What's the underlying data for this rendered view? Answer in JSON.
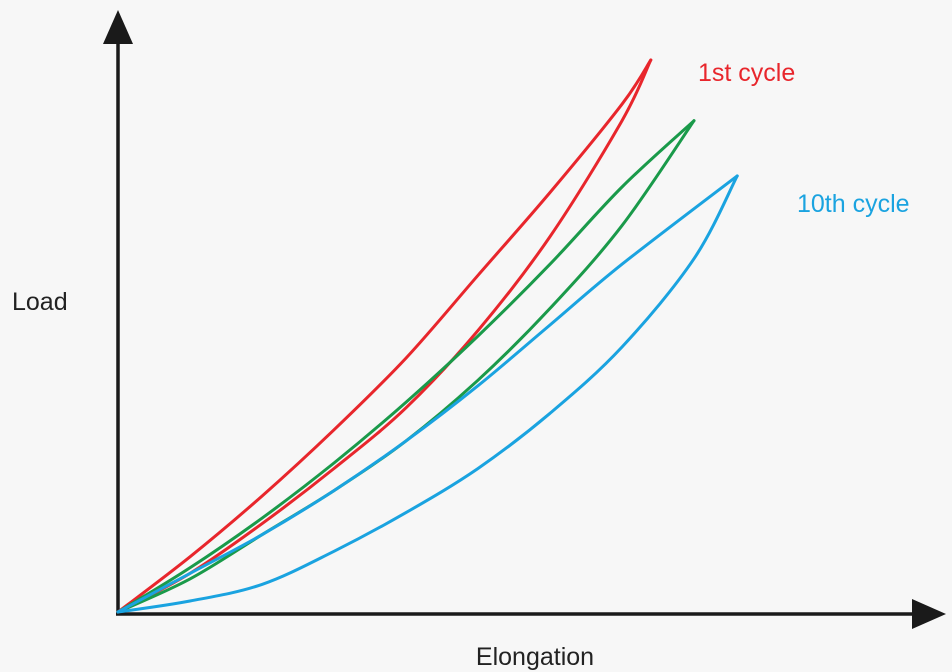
{
  "chart_data": {
    "type": "line",
    "title": "",
    "xlabel": "Elongation",
    "ylabel": "Load",
    "xlim": [
      0,
      10
    ],
    "ylim": [
      0,
      10
    ],
    "grid": false,
    "series": [
      {
        "name": "1st cycle",
        "color": "#e8262c",
        "loading": {
          "x": [
            0,
            1,
            2,
            3,
            4,
            5,
            6,
            7,
            7.4
          ],
          "y": [
            0,
            1.0,
            2.1,
            3.3,
            4.6,
            6.1,
            7.6,
            9.2,
            10.0
          ]
        },
        "unloading": {
          "x": [
            7.4,
            7,
            6,
            5,
            4,
            3,
            2,
            1,
            0
          ],
          "y": [
            10.0,
            8.9,
            6.8,
            5.1,
            3.7,
            2.6,
            1.6,
            0.7,
            0
          ]
        }
      },
      {
        "name": "",
        "color": "#1a9a4a",
        "loading": {
          "x": [
            0,
            1,
            2,
            3,
            4,
            5,
            6,
            7,
            8.0
          ],
          "y": [
            0,
            0.8,
            1.7,
            2.7,
            3.8,
            5.0,
            6.3,
            7.7,
            8.9
          ]
        },
        "unloading": {
          "x": [
            8.0,
            7,
            6,
            5,
            4,
            3,
            2,
            1,
            0
          ],
          "y": [
            8.9,
            7.0,
            5.5,
            4.2,
            3.1,
            2.2,
            1.4,
            0.6,
            0
          ]
        }
      },
      {
        "name": "10th cycle",
        "color": "#1aa3e0",
        "loading": {
          "x": [
            0,
            1,
            2,
            3,
            4,
            5,
            6,
            7,
            8.6
          ],
          "y": [
            0,
            0.7,
            1.4,
            2.2,
            3.1,
            4.1,
            5.2,
            6.3,
            7.9
          ]
        },
        "unloading": {
          "x": [
            8.6,
            8,
            7,
            6,
            5,
            4,
            3,
            2,
            1,
            0
          ],
          "y": [
            7.9,
            6.4,
            4.8,
            3.6,
            2.6,
            1.8,
            1.1,
            0.5,
            0.2,
            0
          ]
        }
      }
    ]
  }
}
